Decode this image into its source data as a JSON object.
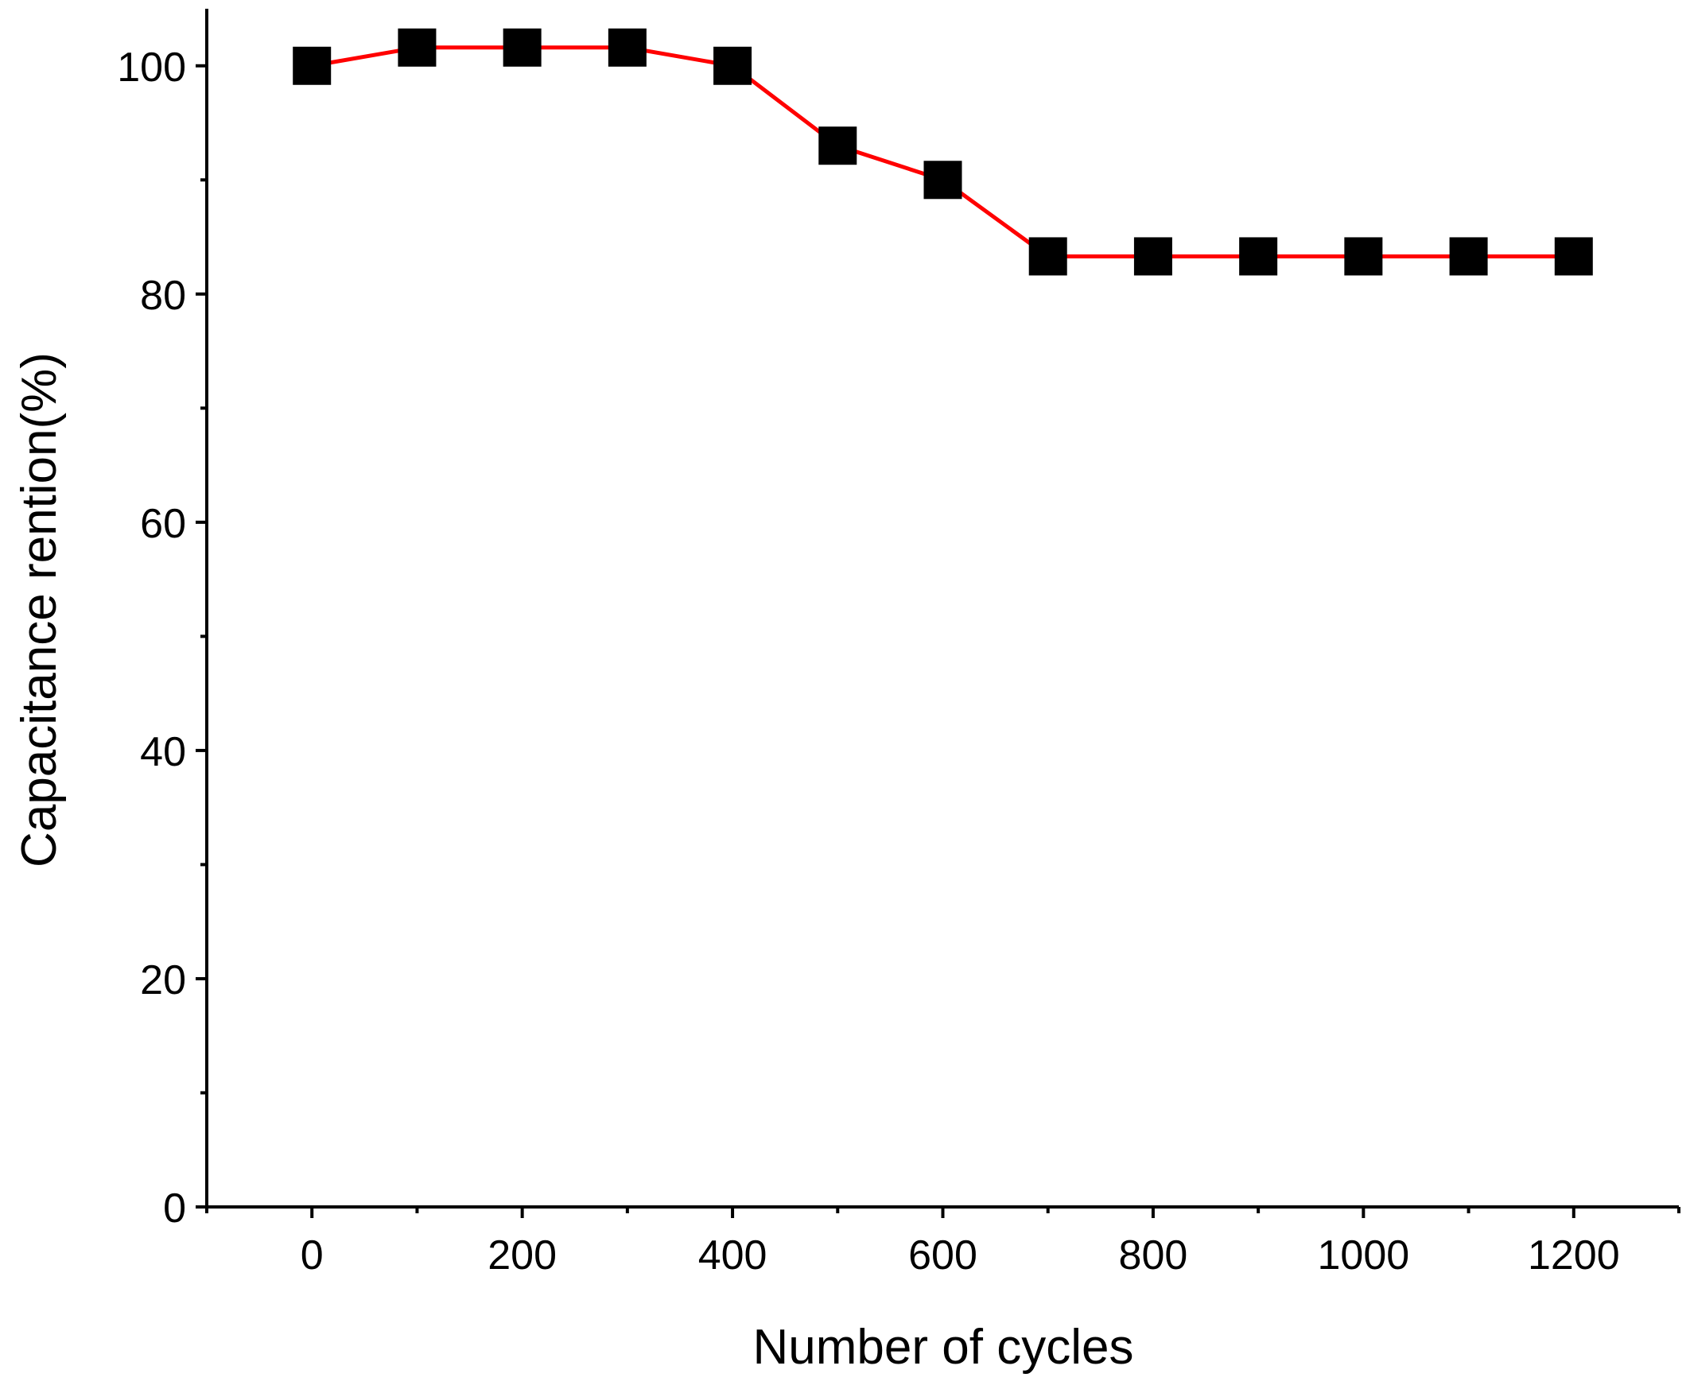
{
  "chart_data": {
    "type": "line",
    "x_label": "Number of cycles",
    "y_label": "Capacitance rention(%)",
    "x": [
      0,
      100,
      200,
      300,
      400,
      500,
      600,
      700,
      800,
      900,
      1000,
      1100,
      1200
    ],
    "series": [
      {
        "color": "#ff0000",
        "marker_color": "#000000",
        "values": [
          100,
          101.6,
          101.6,
          101.6,
          100,
          93,
          90,
          83.3,
          83.3,
          83.3,
          83.3,
          83.3,
          83.3
        ]
      }
    ],
    "xlim": [
      -100,
      1300
    ],
    "ylim": [
      0,
      105
    ],
    "xticks": [
      0,
      200,
      400,
      600,
      800,
      1000,
      1200
    ],
    "xticks_minor": [
      -100,
      100,
      300,
      500,
      700,
      900,
      1100,
      1300
    ],
    "yticks": [
      0,
      20,
      40,
      60,
      80,
      100
    ],
    "yticks_minor": [
      10,
      30,
      50,
      70,
      90
    ],
    "grid": false
  }
}
